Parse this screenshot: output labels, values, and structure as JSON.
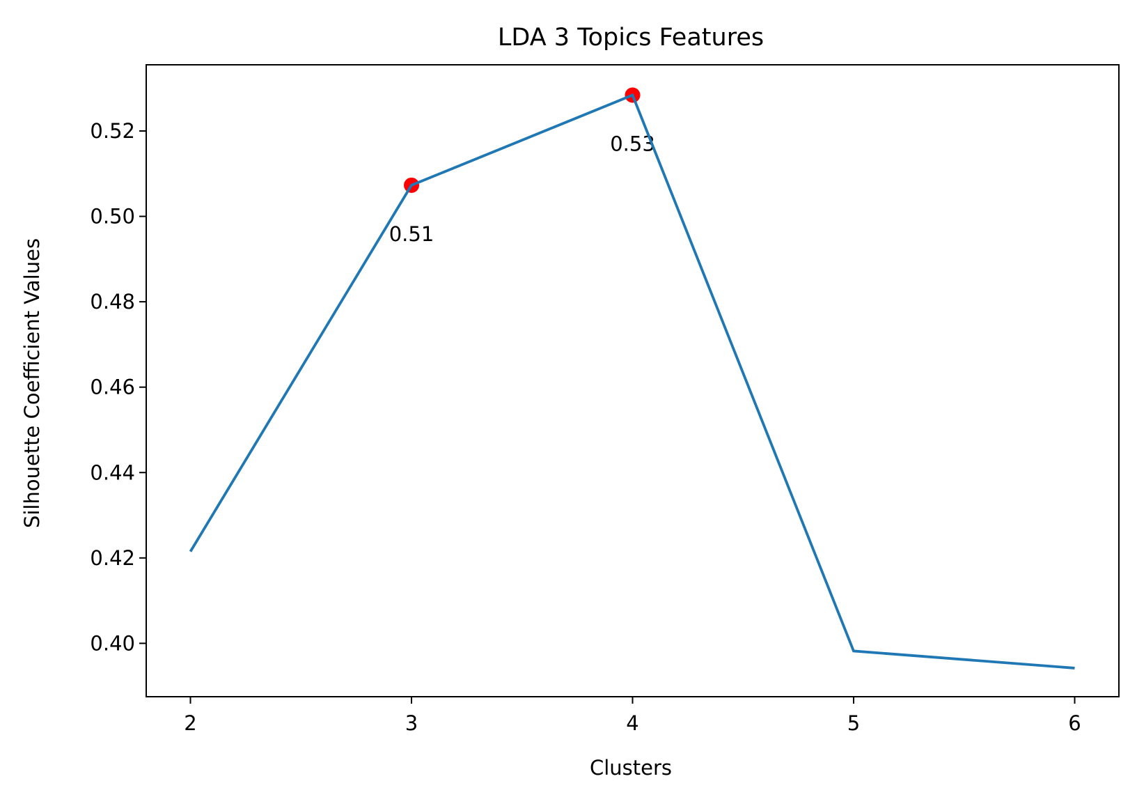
{
  "chart_data": {
    "type": "line",
    "title": "LDA 3 Topics Features",
    "xlabel": "Clusters",
    "ylabel": "Silhouette Coefficient Values",
    "x": [
      2,
      3,
      4,
      5,
      6
    ],
    "series": [
      {
        "values": [
          0.4215,
          0.5073,
          0.5284,
          0.3982,
          0.3942
        ],
        "color": "#1f77b4"
      }
    ],
    "highlights": [
      {
        "x": 3,
        "y": 0.5073,
        "label": "0.51",
        "color": "#ff0000"
      },
      {
        "x": 4,
        "y": 0.5284,
        "label": "0.53",
        "color": "#ff0000"
      }
    ],
    "xticks": [
      "2",
      "3",
      "4",
      "5",
      "6"
    ],
    "yticks": [
      "0.40",
      "0.42",
      "0.44",
      "0.46",
      "0.48",
      "0.50",
      "0.52"
    ],
    "xlim": [
      1.8,
      6.2
    ],
    "ylim": [
      0.3875,
      0.5355
    ],
    "grid": false,
    "legend": false
  }
}
